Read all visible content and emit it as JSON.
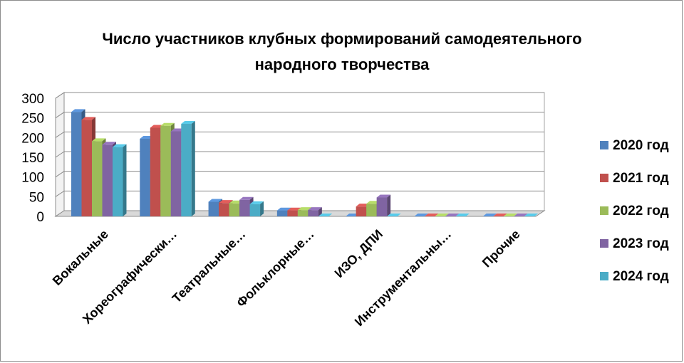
{
  "chart_data": {
    "type": "bar",
    "title_lines": [
      "Число участников клубных формирований самодеятельного",
      "народного творчества"
    ],
    "categories": [
      "Вокальные",
      "Хореографически…",
      "Театральные…",
      "Фольклорные…",
      "ИЗО, ДПИ",
      "Инструментальны…",
      "Прочие"
    ],
    "series": [
      {
        "name": "2020 год",
        "color": "#4f81bd",
        "values": [
          265,
          197,
          37,
          15,
          0,
          0,
          0
        ]
      },
      {
        "name": "2021 год",
        "color": "#c0504d",
        "values": [
          245,
          225,
          34,
          15,
          25,
          0,
          0
        ]
      },
      {
        "name": "2022 год",
        "color": "#9bbb59",
        "values": [
          191,
          230,
          33,
          16,
          32,
          0,
          0
        ]
      },
      {
        "name": "2023 год",
        "color": "#8064a2",
        "values": [
          182,
          216,
          42,
          16,
          48,
          0,
          0
        ]
      },
      {
        "name": "2024 год",
        "color": "#4bacc6",
        "values": [
          176,
          235,
          31,
          0,
          0,
          0,
          0
        ]
      }
    ],
    "yticks": [
      "300",
      "250",
      "200",
      "150",
      "100",
      "50",
      "0"
    ],
    "ylim": [
      0,
      300
    ],
    "grid": true,
    "legend": "right"
  }
}
